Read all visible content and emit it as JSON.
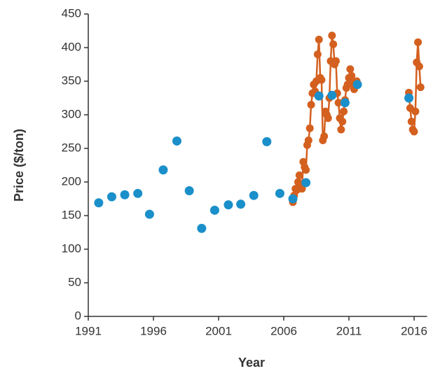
{
  "chart_data": {
    "type": "scatter",
    "x_label": "Year",
    "y_label": "Price ($/ton)",
    "xlim": [
      1991,
      2017
    ],
    "xticks": [
      1991,
      1996,
      2001,
      2006,
      2011,
      2016
    ],
    "ylim": [
      0,
      450
    ],
    "yticks": [
      0,
      50,
      100,
      150,
      200,
      250,
      300,
      350,
      400,
      450
    ],
    "grid": false,
    "series": [
      {
        "color": "#d4601f",
        "line": true,
        "x": [
          2006.7,
          2006.8,
          2006.9,
          2007.0,
          2007.1,
          2007.2,
          2007.3,
          2007.4,
          2007.5,
          2007.6,
          2007.7,
          2007.8,
          2007.9,
          2008.0,
          2008.1,
          2008.2,
          2008.3,
          2008.4,
          2008.5,
          2008.6,
          2008.7,
          2008.8,
          2008.9,
          2009.0,
          2009.1,
          2009.2,
          2009.3,
          2009.4,
          2009.5,
          2009.6,
          2009.7,
          2009.8,
          2009.9,
          2010.0,
          2010.1,
          2010.2,
          2010.3,
          2010.4,
          2010.5,
          2010.6,
          2010.7,
          2010.8,
          2010.9,
          2011.0,
          2011.1,
          2011.2,
          2011.3,
          2011.4,
          2011.5,
          2011.6,
          null,
          2015.6,
          2015.7,
          2015.8,
          2015.9,
          2016.0,
          2016.1,
          2016.2,
          2016.3,
          2016.4,
          2016.5
        ],
        "values": [
          170,
          180,
          190,
          188,
          200,
          210,
          195,
          190,
          230,
          222,
          218,
          255,
          262,
          280,
          315,
          332,
          345,
          335,
          350,
          390,
          412,
          355,
          352,
          262,
          268,
          305,
          300,
          295,
          325,
          380,
          418,
          405,
          375,
          380,
          332,
          318,
          295,
          278,
          290,
          305,
          322,
          340,
          345,
          355,
          368,
          358,
          345,
          338,
          348,
          350,
          null,
          333,
          310,
          290,
          278,
          275,
          305,
          378,
          408,
          372,
          341
        ]
      },
      {
        "color": "#1a8fca",
        "line": false,
        "x": [
          1991.8,
          1992.8,
          1993.8,
          1994.8,
          1995.7,
          1996.75,
          1997.8,
          1998.75,
          1999.7,
          2000.7,
          2001.75,
          2002.7,
          2003.7,
          2004.7,
          2005.7,
          2006.7,
          2007.7,
          2008.7,
          2009.7,
          2010.7,
          2011.65,
          2015.6
        ],
        "values": [
          169,
          178,
          181,
          183,
          152,
          218,
          261,
          187,
          131,
          158,
          166,
          167,
          180,
          260,
          183,
          175,
          199,
          328,
          329,
          318,
          345,
          325
        ]
      }
    ]
  }
}
